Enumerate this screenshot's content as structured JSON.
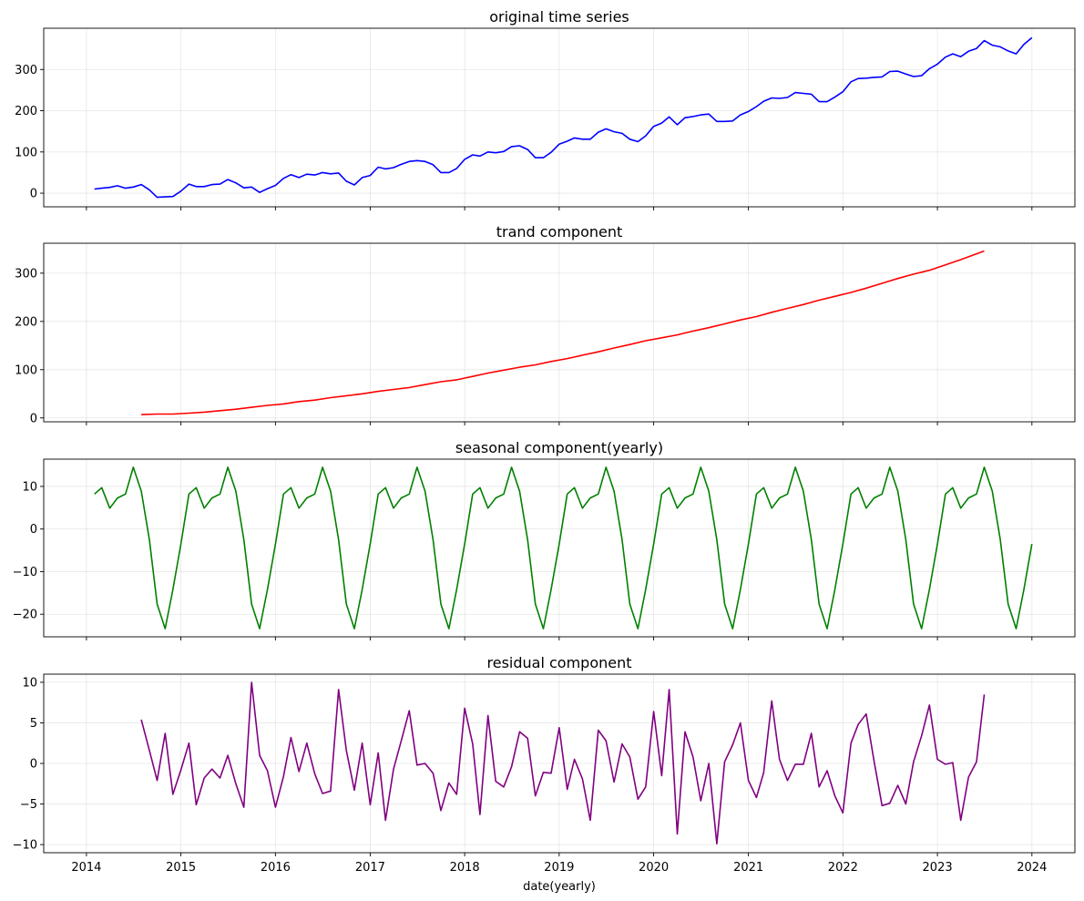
{
  "chart_data": [
    {
      "type": "line",
      "title": "original time series",
      "color": "#0000ff",
      "ylim": [
        -33,
        400
      ],
      "yticks": [
        0,
        100,
        200,
        300
      ],
      "grid": true,
      "x": [
        "2014-02-01",
        "2014-03-01",
        "2014-04-01",
        "2014-05-01",
        "2014-06-01",
        "2014-07-01",
        "2014-08-01",
        "2014-09-01",
        "2014-10-01",
        "2014-11-01",
        "2014-12-01",
        "2015-01-01",
        "2015-02-01",
        "2015-03-01",
        "2015-04-01",
        "2015-05-01",
        "2015-06-01",
        "2015-07-01",
        "2015-08-01",
        "2015-09-01",
        "2015-10-01",
        "2015-11-01",
        "2015-12-01",
        "2016-01-01",
        "2016-02-01",
        "2016-03-01",
        "2016-04-01",
        "2016-05-01",
        "2016-06-01",
        "2016-07-01",
        "2016-08-01",
        "2016-09-01",
        "2016-10-01",
        "2016-11-01",
        "2016-12-01",
        "2017-01-01",
        "2017-02-01",
        "2017-03-01",
        "2017-04-01",
        "2017-05-01",
        "2017-06-01",
        "2017-07-01",
        "2017-08-01",
        "2017-09-01",
        "2017-10-01",
        "2017-11-01",
        "2017-12-01",
        "2018-01-01",
        "2018-02-01",
        "2018-03-01",
        "2018-04-01",
        "2018-05-01",
        "2018-06-01",
        "2018-07-01",
        "2018-08-01",
        "2018-09-01",
        "2018-10-01",
        "2018-11-01",
        "2018-12-01",
        "2019-01-01",
        "2019-02-01",
        "2019-03-01",
        "2019-04-01",
        "2019-05-01",
        "2019-06-01",
        "2019-07-01",
        "2019-08-01",
        "2019-09-01",
        "2019-10-01",
        "2019-11-01",
        "2019-12-01",
        "2020-01-01",
        "2020-02-01",
        "2020-03-01",
        "2020-04-01",
        "2020-05-01",
        "2020-06-01",
        "2020-07-01",
        "2020-08-01",
        "2020-09-01",
        "2020-10-01",
        "2020-11-01",
        "2020-12-01",
        "2021-01-01",
        "2021-02-01",
        "2021-03-01",
        "2021-04-01",
        "2021-05-01",
        "2021-06-01",
        "2021-07-01",
        "2021-08-01",
        "2021-09-01",
        "2021-10-01",
        "2021-11-01",
        "2021-12-01",
        "2022-01-01",
        "2022-02-01",
        "2022-03-01",
        "2022-04-01",
        "2022-05-01",
        "2022-06-01",
        "2022-07-01",
        "2022-08-01",
        "2022-09-01",
        "2022-10-01",
        "2022-11-01",
        "2022-12-01",
        "2023-01-01",
        "2023-02-01",
        "2023-03-01",
        "2023-04-01",
        "2023-05-01",
        "2023-06-01",
        "2023-07-01",
        "2023-08-01",
        "2023-09-01",
        "2023-10-01",
        "2023-11-01",
        "2023-12-01",
        "2024-01-01"
      ],
      "values": [
        10,
        12,
        14,
        18,
        12,
        15,
        21,
        8,
        -10,
        -9,
        -8,
        5,
        22,
        16,
        16,
        21,
        22,
        33,
        25,
        13,
        15,
        2,
        11,
        19,
        36,
        45,
        38,
        46,
        44,
        50,
        47,
        49,
        29,
        20,
        38,
        43,
        63,
        59,
        62,
        70,
        77,
        79,
        77,
        69,
        50,
        50,
        60,
        82,
        93,
        90,
        100,
        98,
        101,
        113,
        115,
        106,
        86,
        86,
        99,
        119,
        126,
        134,
        131,
        131,
        148,
        156,
        149,
        145,
        131,
        125,
        139,
        162,
        170,
        185,
        166,
        183,
        186,
        190,
        192,
        174,
        174,
        175,
        190,
        198,
        210,
        223,
        231,
        230,
        232,
        244,
        242,
        240,
        222,
        222,
        233,
        246,
        270,
        278,
        279,
        281,
        282,
        295,
        296,
        289,
        283,
        285,
        302,
        313,
        330,
        338,
        331,
        344,
        351,
        370,
        359,
        355,
        345,
        338,
        361,
        377
      ]
    },
    {
      "type": "line",
      "title": "trand component",
      "color": "#ff0000",
      "ylim": [
        -8,
        362
      ],
      "yticks": [
        0,
        100,
        200,
        300
      ],
      "grid": true,
      "x": [
        "2014-08-01",
        "2014-10-01",
        "2014-12-01",
        "2015-02-01",
        "2015-04-01",
        "2015-06-01",
        "2015-08-01",
        "2015-10-01",
        "2015-12-01",
        "2016-02-01",
        "2016-04-01",
        "2016-06-01",
        "2016-08-01",
        "2016-10-01",
        "2016-12-01",
        "2017-02-01",
        "2017-04-01",
        "2017-06-01",
        "2017-08-01",
        "2017-10-01",
        "2017-12-01",
        "2018-02-01",
        "2018-04-01",
        "2018-06-01",
        "2018-08-01",
        "2018-10-01",
        "2018-12-01",
        "2019-02-01",
        "2019-04-01",
        "2019-06-01",
        "2019-08-01",
        "2019-10-01",
        "2019-12-01",
        "2020-02-01",
        "2020-04-01",
        "2020-06-01",
        "2020-08-01",
        "2020-10-01",
        "2020-12-01",
        "2021-02-01",
        "2021-04-01",
        "2021-06-01",
        "2021-08-01",
        "2021-10-01",
        "2021-12-01",
        "2022-02-01",
        "2022-04-01",
        "2022-06-01",
        "2022-08-01",
        "2022-10-01",
        "2022-12-01",
        "2023-02-01",
        "2023-04-01",
        "2023-07-01"
      ],
      "values": [
        7,
        8,
        8,
        10,
        12,
        15,
        18,
        22,
        26,
        29,
        34,
        37,
        42,
        46,
        50,
        55,
        59,
        63,
        69,
        75,
        79,
        86,
        93,
        99,
        105,
        110,
        117,
        123,
        130,
        137,
        145,
        152,
        160,
        166,
        172,
        180,
        187,
        195,
        203,
        210,
        219,
        227,
        235,
        244,
        252,
        260,
        269,
        279,
        289,
        298,
        306,
        317,
        328,
        346
      ]
    },
    {
      "type": "line",
      "title": "seasonal component(yearly)",
      "color": "#008000",
      "ylim": [
        -25.3,
        16.4
      ],
      "yticks": [
        -20,
        -10,
        0,
        10
      ],
      "grid": true,
      "x": [
        "2014-02-01",
        "2014-03-01",
        "2014-04-01",
        "2014-05-01",
        "2014-06-01",
        "2014-07-01",
        "2014-08-01",
        "2014-09-01",
        "2014-10-01",
        "2014-11-01",
        "2014-12-01",
        "2015-01-01",
        "2015-02-01",
        "2015-03-01",
        "2015-04-01",
        "2015-05-01",
        "2015-06-01",
        "2015-07-01",
        "2015-08-01",
        "2015-09-01",
        "2015-10-01",
        "2015-11-01",
        "2015-12-01",
        "2016-01-01",
        "2016-02-01",
        "2016-03-01",
        "2016-04-01",
        "2016-05-01",
        "2016-06-01",
        "2016-07-01",
        "2016-08-01",
        "2016-09-01",
        "2016-10-01",
        "2016-11-01",
        "2016-12-01",
        "2017-01-01",
        "2017-02-01",
        "2017-03-01",
        "2017-04-01",
        "2017-05-01",
        "2017-06-01",
        "2017-07-01",
        "2017-08-01",
        "2017-09-01",
        "2017-10-01",
        "2017-11-01",
        "2017-12-01",
        "2018-01-01",
        "2018-02-01",
        "2018-03-01",
        "2018-04-01",
        "2018-05-01",
        "2018-06-01",
        "2018-07-01",
        "2018-08-01",
        "2018-09-01",
        "2018-10-01",
        "2018-11-01",
        "2018-12-01",
        "2019-01-01",
        "2019-02-01",
        "2019-03-01",
        "2019-04-01",
        "2019-05-01",
        "2019-06-01",
        "2019-07-01",
        "2019-08-01",
        "2019-09-01",
        "2019-10-01",
        "2019-11-01",
        "2019-12-01",
        "2020-01-01",
        "2020-02-01",
        "2020-03-01",
        "2020-04-01",
        "2020-05-01",
        "2020-06-01",
        "2020-07-01",
        "2020-08-01",
        "2020-09-01",
        "2020-10-01",
        "2020-11-01",
        "2020-12-01",
        "2021-01-01",
        "2021-02-01",
        "2021-03-01",
        "2021-04-01",
        "2021-05-01",
        "2021-06-01",
        "2021-07-01",
        "2021-08-01",
        "2021-09-01",
        "2021-10-01",
        "2021-11-01",
        "2021-12-01",
        "2022-01-01",
        "2022-02-01",
        "2022-03-01",
        "2022-04-01",
        "2022-05-01",
        "2022-06-01",
        "2022-07-01",
        "2022-08-01",
        "2022-09-01",
        "2022-10-01",
        "2022-11-01",
        "2022-12-01",
        "2023-01-01",
        "2023-02-01",
        "2023-03-01",
        "2023-04-01",
        "2023-05-01",
        "2023-06-01",
        "2023-07-01",
        "2023-08-01",
        "2023-09-01",
        "2023-10-01",
        "2023-11-01",
        "2023-12-01",
        "2024-01-01"
      ],
      "values": [
        8.2,
        9.7,
        4.9,
        7.3,
        8.2,
        14.5,
        8.9,
        -2.5,
        -17.6,
        -23.4,
        -14.2,
        -3.5,
        8.2,
        9.7,
        4.9,
        7.3,
        8.2,
        14.5,
        8.9,
        -2.5,
        -17.6,
        -23.4,
        -14.2,
        -3.5,
        8.2,
        9.7,
        4.9,
        7.3,
        8.2,
        14.5,
        8.9,
        -2.5,
        -17.6,
        -23.4,
        -14.2,
        -3.5,
        8.2,
        9.7,
        4.9,
        7.3,
        8.2,
        14.5,
        8.9,
        -2.5,
        -17.6,
        -23.4,
        -14.2,
        -3.5,
        8.2,
        9.7,
        4.9,
        7.3,
        8.2,
        14.5,
        8.9,
        -2.5,
        -17.6,
        -23.4,
        -14.2,
        -3.5,
        8.2,
        9.7,
        4.9,
        7.3,
        8.2,
        14.5,
        8.9,
        -2.5,
        -17.6,
        -23.4,
        -14.2,
        -3.5,
        8.2,
        9.7,
        4.9,
        7.3,
        8.2,
        14.5,
        8.9,
        -2.5,
        -17.6,
        -23.4,
        -14.2,
        -3.5,
        8.2,
        9.7,
        4.9,
        7.3,
        8.2,
        14.5,
        8.9,
        -2.5,
        -17.6,
        -23.4,
        -14.2,
        -3.5,
        8.2,
        9.7,
        4.9,
        7.3,
        8.2,
        14.5,
        8.9,
        -2.5,
        -17.6,
        -23.4,
        -14.2,
        -3.5,
        8.2,
        9.7,
        4.9,
        7.3,
        8.2,
        14.5,
        8.9,
        -2.5,
        -17.6,
        -23.4,
        -14.2,
        -3.5
      ]
    },
    {
      "type": "line",
      "title": "residual component",
      "color": "#800080",
      "ylim": [
        -11,
        11
      ],
      "yticks": [
        -10,
        -5,
        0,
        5,
        10
      ],
      "grid": true,
      "x": [
        "2014-08-01",
        "2014-09-01",
        "2014-10-01",
        "2014-11-01",
        "2014-12-01",
        "2015-01-01",
        "2015-02-01",
        "2015-03-01",
        "2015-04-01",
        "2015-05-01",
        "2015-06-01",
        "2015-07-01",
        "2015-08-01",
        "2015-09-01",
        "2015-10-01",
        "2015-11-01",
        "2015-12-01",
        "2016-01-01",
        "2016-02-01",
        "2016-03-01",
        "2016-04-01",
        "2016-05-01",
        "2016-06-01",
        "2016-07-01",
        "2016-08-01",
        "2016-09-01",
        "2016-10-01",
        "2016-11-01",
        "2016-12-01",
        "2017-01-01",
        "2017-02-01",
        "2017-03-01",
        "2017-04-01",
        "2017-05-01",
        "2017-06-01",
        "2017-07-01",
        "2017-08-01",
        "2017-09-01",
        "2017-10-01",
        "2017-11-01",
        "2017-12-01",
        "2018-01-01",
        "2018-02-01",
        "2018-03-01",
        "2018-04-01",
        "2018-05-01",
        "2018-06-01",
        "2018-07-01",
        "2018-08-01",
        "2018-09-01",
        "2018-10-01",
        "2018-11-01",
        "2018-12-01",
        "2019-01-01",
        "2019-02-01",
        "2019-03-01",
        "2019-04-01",
        "2019-05-01",
        "2019-06-01",
        "2019-07-01",
        "2019-08-01",
        "2019-09-01",
        "2019-10-01",
        "2019-11-01",
        "2019-12-01",
        "2020-01-01",
        "2020-02-01",
        "2020-03-01",
        "2020-04-01",
        "2020-05-01",
        "2020-06-01",
        "2020-07-01",
        "2020-08-01",
        "2020-09-01",
        "2020-10-01",
        "2020-11-01",
        "2020-12-01",
        "2021-01-01",
        "2021-02-01",
        "2021-03-01",
        "2021-04-01",
        "2021-05-01",
        "2021-06-01",
        "2021-07-01",
        "2021-08-01",
        "2021-09-01",
        "2021-10-01",
        "2021-11-01",
        "2021-12-01",
        "2022-01-01",
        "2022-02-01",
        "2022-03-01",
        "2022-04-01",
        "2022-05-01",
        "2022-06-01",
        "2022-07-01",
        "2022-08-01",
        "2022-09-01",
        "2022-10-01",
        "2022-11-01",
        "2022-12-01",
        "2023-01-01",
        "2023-02-01",
        "2023-03-01",
        "2023-04-01",
        "2023-05-01",
        "2023-06-01",
        "2023-07-01"
      ],
      "values": [
        5.4,
        1.6,
        -2.1,
        3.7,
        -3.8,
        -0.8,
        2.5,
        -5.1,
        -1.8,
        -0.7,
        -1.8,
        1.0,
        -2.5,
        -5.4,
        10.0,
        1.0,
        -0.9,
        -5.4,
        -1.6,
        3.2,
        -1.0,
        2.5,
        -1.3,
        -3.7,
        -3.4,
        9.1,
        1.6,
        -3.3,
        2.5,
        -5.1,
        1.3,
        -7.0,
        -0.7,
        2.8,
        6.5,
        -0.2,
        0.0,
        -1.2,
        -5.8,
        -2.4,
        -3.8,
        6.8,
        2.4,
        -6.3,
        5.9,
        -2.2,
        -2.9,
        -0.4,
        3.9,
        3.1,
        -4.0,
        -1.1,
        -1.2,
        4.4,
        -3.2,
        0.5,
        -1.9,
        -7.0,
        4.1,
        2.8,
        -2.3,
        2.4,
        0.8,
        -4.4,
        -2.9,
        6.4,
        -1.5,
        9.1,
        -8.7,
        3.9,
        0.8,
        -4.6,
        0.0,
        -9.9,
        0.2,
        2.3,
        5.0,
        -2.1,
        -4.2,
        -1.1,
        7.7,
        0.5,
        -2.1,
        -0.1,
        -0.1,
        3.7,
        -2.9,
        -0.9,
        -4.0,
        -6.1,
        2.5,
        4.8,
        6.1,
        0.3,
        -5.2,
        -4.9,
        -2.7,
        -5.0,
        0.2,
        3.4,
        7.2,
        0.5,
        -0.1,
        0.1,
        -7.0,
        -1.7,
        0.2,
        8.5
      ]
    }
  ],
  "xaxis": {
    "label": "date(yearly)",
    "ticks": [
      "2014",
      "2015",
      "2016",
      "2017",
      "2018",
      "2019",
      "2020",
      "2021",
      "2022",
      "2023",
      "2024"
    ],
    "range": [
      "2013-07-20",
      "2024-06-15"
    ]
  }
}
